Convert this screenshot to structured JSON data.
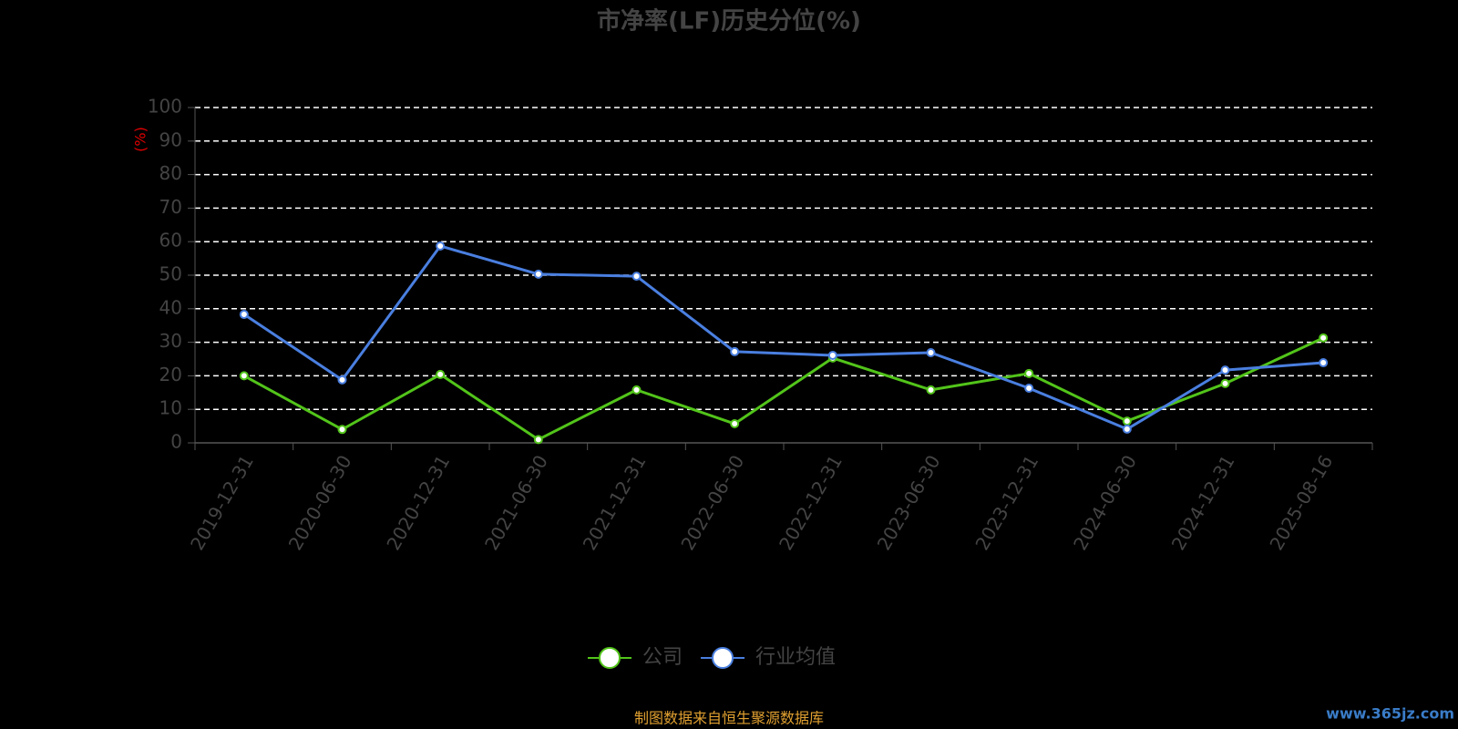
{
  "chart_data": {
    "type": "line",
    "title": "市净率(LF)历史分位(%)",
    "y_label": "(%)",
    "categories": [
      "2019-12-31",
      "2020-06-30",
      "2020-12-31",
      "2021-06-30",
      "2021-12-31",
      "2022-06-30",
      "2022-12-31",
      "2023-06-30",
      "2023-12-31",
      "2024-06-30",
      "2024-12-31",
      "2025-08-16"
    ],
    "series": [
      {
        "name": "公司",
        "color": "#52c41a",
        "values": [
          20,
          4,
          20.4,
          1,
          15.8,
          5.7,
          25.3,
          15.8,
          20.7,
          6.5,
          17.7,
          31.3
        ]
      },
      {
        "name": "行业均值",
        "color": "#4a7fe0",
        "values": [
          38.3,
          18.8,
          58.7,
          50.3,
          49.7,
          27.2,
          26.1,
          26.9,
          16.3,
          4.1,
          21.7,
          23.9
        ]
      }
    ],
    "ylim": [
      0,
      100
    ],
    "yticks": [
      0,
      10,
      20,
      30,
      40,
      50,
      60,
      70,
      80,
      90,
      100
    ],
    "grid": true,
    "legend": "bottom",
    "source": "制图数据来自恒生聚源数据库",
    "watermark": "www.365jz.com"
  }
}
